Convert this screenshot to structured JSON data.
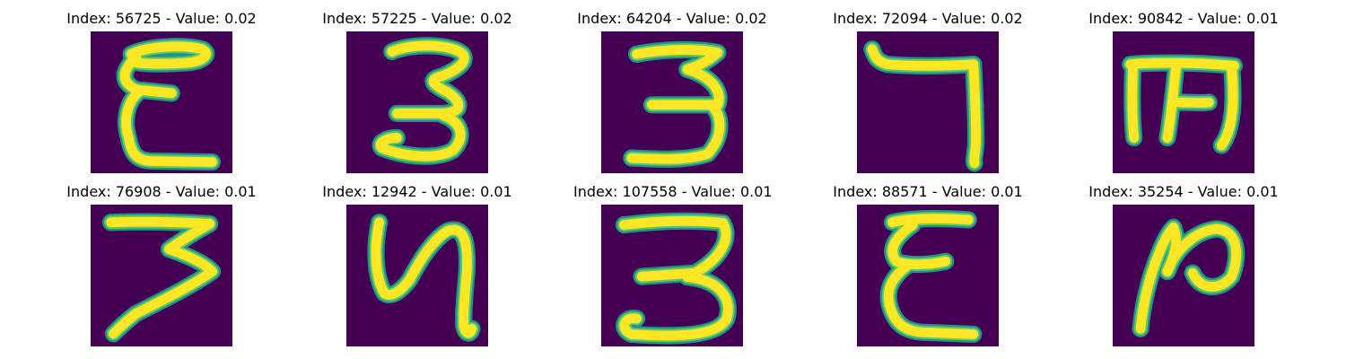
{
  "colors": {
    "background": "#440154",
    "edge": "#21918c",
    "mid": "#5ec962",
    "core": "#fde725"
  },
  "panels": [
    {
      "title": "Index: 56725 - Value: 0.02",
      "glyph": "epsilon-a"
    },
    {
      "title": "Index: 57225 - Value: 0.02",
      "glyph": "three-a"
    },
    {
      "title": "Index: 64204 - Value: 0.02",
      "glyph": "three-b"
    },
    {
      "title": "Index: 72094 - Value: 0.02",
      "glyph": "seven-a"
    },
    {
      "title": "Index: 90842 - Value: 0.01",
      "glyph": "m-shape"
    },
    {
      "title": "Index: 76908 - Value: 0.01",
      "glyph": "seven-b"
    },
    {
      "title": "Index: 12942 - Value: 0.01",
      "glyph": "y-shape"
    },
    {
      "title": "Index: 107558 - Value: 0.01",
      "glyph": "three-c"
    },
    {
      "title": "Index: 88571 - Value: 0.01",
      "glyph": "epsilon-b"
    },
    {
      "title": "Index: 35254 - Value: 0.01",
      "glyph": "loop-shape"
    }
  ]
}
